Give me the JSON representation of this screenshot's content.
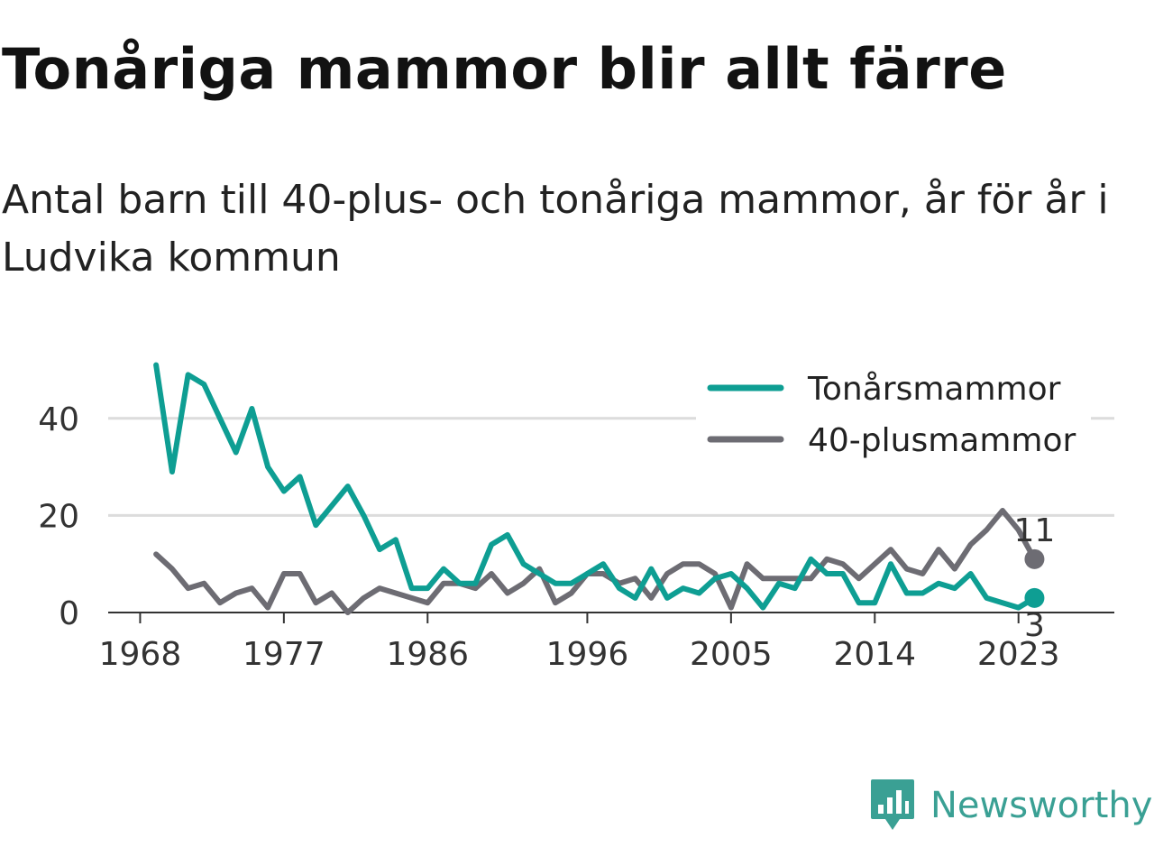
{
  "chart_data": {
    "type": "line",
    "title": "Tonåriga mammor blir allt färre",
    "subtitle": "Antal barn till 40-plus- och tonåriga mammor, år för år i Ludvika kommun",
    "xlabel": "",
    "ylabel": "",
    "x": [
      1969,
      1970,
      1971,
      1972,
      1973,
      1974,
      1975,
      1976,
      1977,
      1978,
      1979,
      1980,
      1981,
      1982,
      1983,
      1984,
      1985,
      1986,
      1987,
      1988,
      1989,
      1990,
      1991,
      1992,
      1993,
      1994,
      1995,
      1996,
      1997,
      1998,
      1999,
      2000,
      2001,
      2002,
      2003,
      2004,
      2005,
      2006,
      2007,
      2008,
      2009,
      2010,
      2011,
      2012,
      2013,
      2014,
      2015,
      2016,
      2017,
      2018,
      2019,
      2020,
      2021,
      2022,
      2023,
      2024
    ],
    "xticks": [
      "1968",
      "1977",
      "1986",
      "1996",
      "2005",
      "2014",
      "2023"
    ],
    "xtick_values": [
      1968,
      1977,
      1986,
      1996,
      2005,
      2014,
      2023
    ],
    "yticks": [
      "0",
      "20",
      "40"
    ],
    "ytick_values": [
      0,
      20,
      40
    ],
    "ylim": [
      0,
      50
    ],
    "xlim": [
      1966,
      2029
    ],
    "grid": true,
    "legend_position": "top-right",
    "series": [
      {
        "name": "Tonårsmammor",
        "color": "#0e9e93",
        "values": [
          51,
          29,
          49,
          47,
          40,
          33,
          42,
          30,
          25,
          28,
          18,
          22,
          26,
          20,
          13,
          15,
          5,
          5,
          9,
          6,
          6,
          14,
          16,
          10,
          8,
          6,
          6,
          8,
          10,
          5,
          3,
          9,
          3,
          5,
          4,
          7,
          8,
          5,
          1,
          6,
          5,
          11,
          8,
          8,
          2,
          2,
          10,
          4,
          4,
          6,
          5,
          8,
          3,
          2,
          1,
          3
        ],
        "end_label": "3"
      },
      {
        "name": "40-plusmammor",
        "color": "#6d6c73",
        "values": [
          12,
          9,
          5,
          6,
          2,
          4,
          5,
          1,
          8,
          8,
          2,
          4,
          0,
          3,
          5,
          4,
          3,
          2,
          6,
          6,
          5,
          8,
          4,
          6,
          9,
          2,
          4,
          8,
          8,
          6,
          7,
          3,
          8,
          10,
          10,
          8,
          1,
          10,
          7,
          7,
          7,
          7,
          11,
          10,
          7,
          10,
          13,
          9,
          8,
          13,
          9,
          14,
          17,
          21,
          17,
          11
        ],
        "end_label": "11"
      }
    ]
  },
  "logo": {
    "text": "Newsworthy",
    "color": "#3aa094"
  }
}
